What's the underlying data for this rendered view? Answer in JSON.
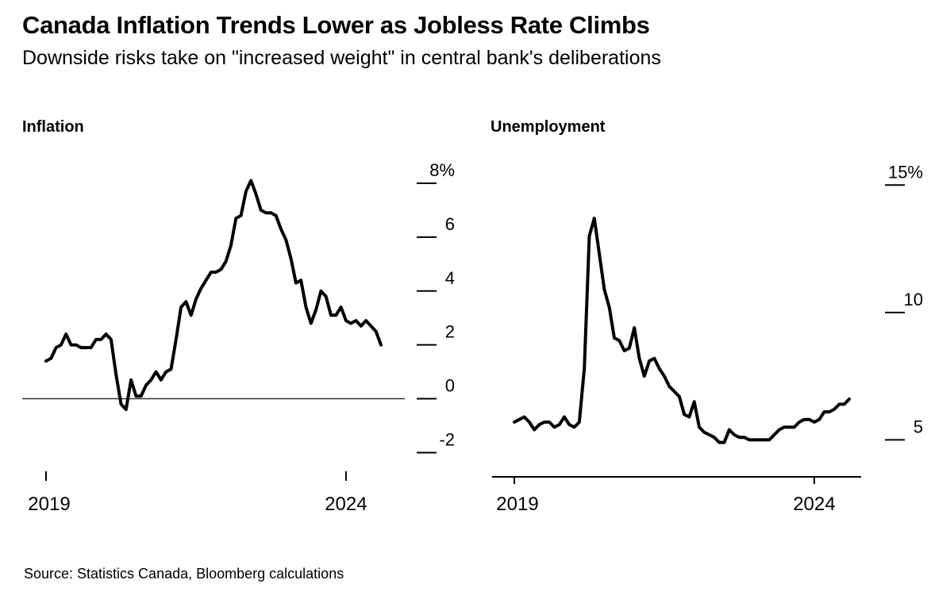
{
  "page": {
    "title": "Canada Inflation Trends Lower as Jobless Rate Climbs",
    "subtitle": "Downside risks take on \"increased weight\" in central bank's deliberations",
    "source": "Source: Statistics Canada, Bloomberg calculations"
  },
  "chart_data": [
    {
      "type": "line",
      "title": "Inflation",
      "x_unit": "month",
      "x_start": "2019-01",
      "x_end": "2024-08",
      "frequency": "monthly",
      "values": [
        1.4,
        1.5,
        1.9,
        2.0,
        2.4,
        2.0,
        2.0,
        1.9,
        1.9,
        1.9,
        2.2,
        2.2,
        2.4,
        2.2,
        0.9,
        -0.2,
        -0.4,
        0.7,
        0.1,
        0.1,
        0.5,
        0.7,
        1.0,
        0.7,
        1.0,
        1.1,
        2.2,
        3.4,
        3.6,
        3.1,
        3.7,
        4.1,
        4.4,
        4.7,
        4.7,
        4.8,
        5.1,
        5.7,
        6.7,
        6.8,
        7.7,
        8.1,
        7.6,
        7.0,
        6.9,
        6.9,
        6.8,
        6.3,
        5.9,
        5.2,
        4.3,
        4.4,
        3.4,
        2.8,
        3.3,
        4.0,
        3.8,
        3.1,
        3.1,
        3.4,
        2.9,
        2.8,
        2.9,
        2.7,
        2.9,
        2.7,
        2.5,
        2.0
      ],
      "ylim": [
        -2.9,
        8.5
      ],
      "y_ticks": [
        {
          "value": 8,
          "label": "8%"
        },
        {
          "value": 6,
          "label": "6"
        },
        {
          "value": 4,
          "label": "4"
        },
        {
          "value": 2,
          "label": "2"
        },
        {
          "value": 0,
          "label": "0"
        },
        {
          "value": -2,
          "label": "-2"
        }
      ],
      "x_ticks": [
        {
          "label": "2019",
          "index": 0
        },
        {
          "label": "2024",
          "index": 60
        }
      ],
      "zero_line": true,
      "bottom_axis": false,
      "grid": false,
      "legend": false,
      "line_color": "#000000"
    },
    {
      "type": "line",
      "title": "Unemployment",
      "x_unit": "month",
      "x_start": "2019-01",
      "x_end": "2024-08",
      "frequency": "monthly",
      "values": [
        5.7,
        5.8,
        5.9,
        5.7,
        5.4,
        5.6,
        5.7,
        5.7,
        5.5,
        5.6,
        5.9,
        5.6,
        5.5,
        5.7,
        7.8,
        13.0,
        13.7,
        12.3,
        10.9,
        10.2,
        9.0,
        8.9,
        8.5,
        8.6,
        9.4,
        8.2,
        7.5,
        8.1,
        8.2,
        7.8,
        7.5,
        7.1,
        6.9,
        6.7,
        6.0,
        5.9,
        6.5,
        5.5,
        5.3,
        5.2,
        5.1,
        4.9,
        4.9,
        5.4,
        5.2,
        5.1,
        5.1,
        5.0,
        5.0,
        5.0,
        5.0,
        5.0,
        5.2,
        5.4,
        5.5,
        5.5,
        5.5,
        5.7,
        5.8,
        5.8,
        5.7,
        5.8,
        6.1,
        6.1,
        6.2,
        6.4,
        6.4,
        6.6
      ],
      "ylim": [
        3.55,
        15.6
      ],
      "y_ticks": [
        {
          "value": 15,
          "label": "15%"
        },
        {
          "value": 10,
          "label": "10"
        },
        {
          "value": 5,
          "label": "5"
        }
      ],
      "x_ticks": [
        {
          "label": "2019",
          "index": 0
        },
        {
          "label": "2024",
          "index": 60
        }
      ],
      "zero_line": false,
      "bottom_axis": true,
      "grid": false,
      "legend": false,
      "line_color": "#000000"
    }
  ]
}
